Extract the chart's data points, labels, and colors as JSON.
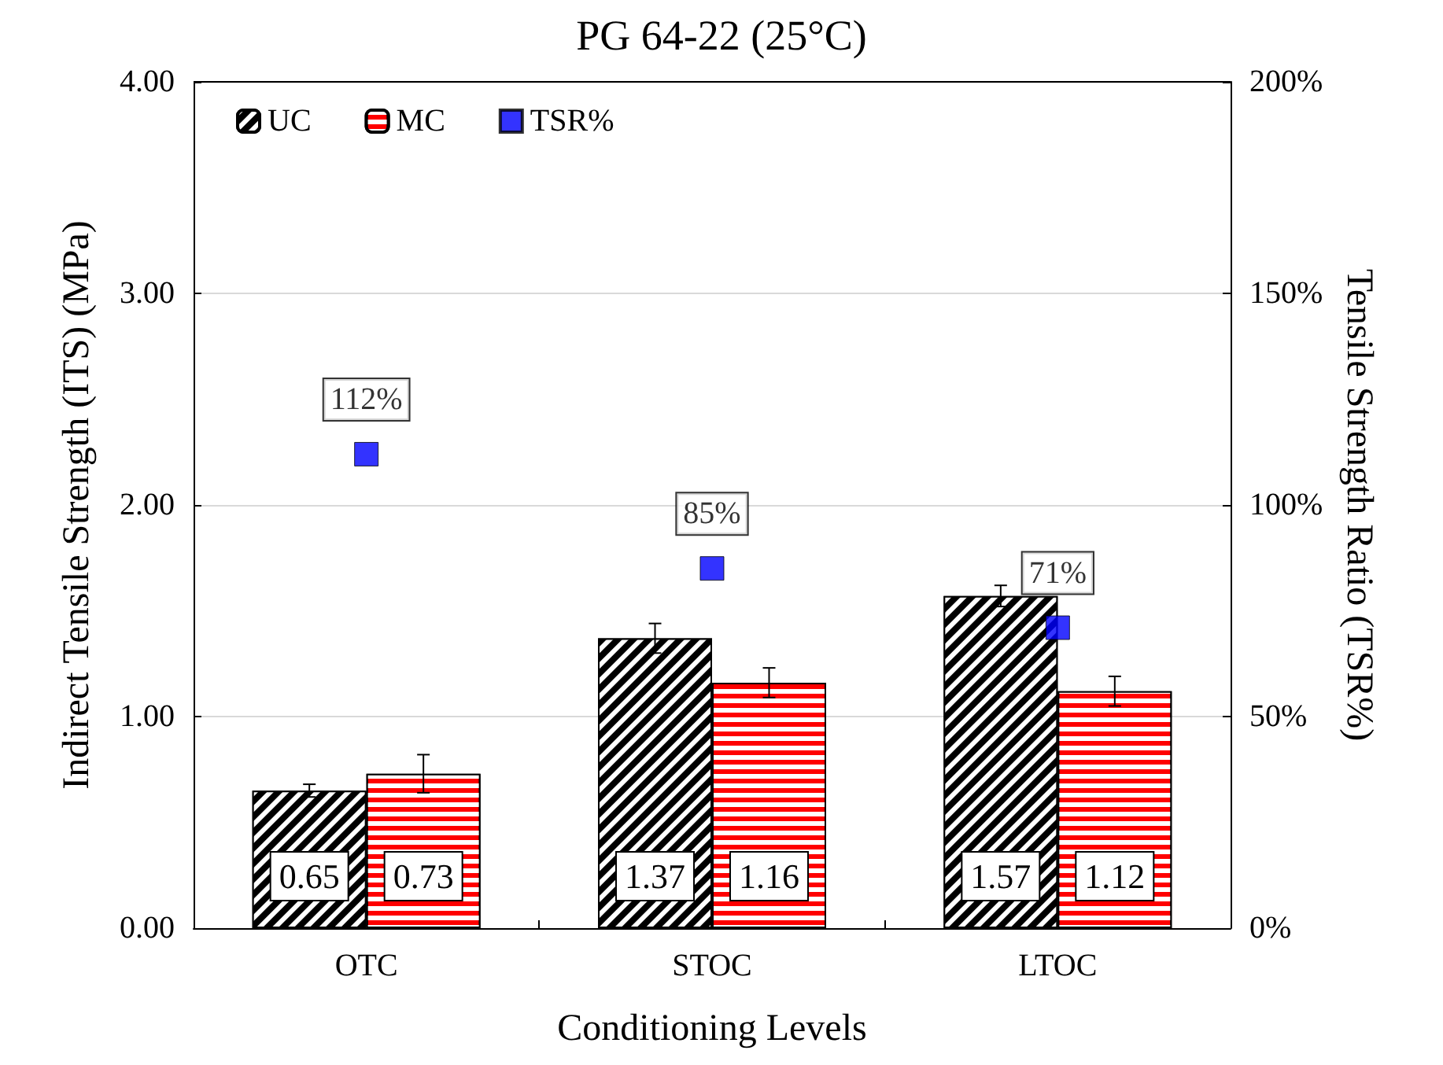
{
  "chart_data": {
    "type": "bar",
    "title": "PG 64-22 (25°C)",
    "xlabel": "Conditioning Levels",
    "ylabel": "Indirect Tensile Strength (ITS) (MPa)",
    "y2label": "Tensile Strength Ratio (TSR%)",
    "categories": [
      "OTC",
      "STOC",
      "LTOC"
    ],
    "series": [
      {
        "name": "UC",
        "color": "#000000",
        "values": [
          0.65,
          1.37,
          1.57
        ],
        "errors": [
          0.03,
          0.07,
          0.05
        ],
        "value_labels": [
          "0.65",
          "1.37",
          "1.57"
        ]
      },
      {
        "name": "MC",
        "color": "#ff0000",
        "values": [
          0.73,
          1.16,
          1.12
        ],
        "errors": [
          0.09,
          0.07,
          0.07
        ],
        "value_labels": [
          "0.73",
          "1.16",
          "1.12"
        ]
      },
      {
        "name": "TSR%",
        "type": "scatter",
        "axis": "y2",
        "color": "#0000ff",
        "values": [
          112,
          85,
          71
        ],
        "value_labels": [
          "112%",
          "85%",
          "71%"
        ]
      }
    ],
    "ylim": [
      0,
      4
    ],
    "yticks": [
      {
        "value": 0,
        "label": "0.00"
      },
      {
        "value": 1,
        "label": "1.00"
      },
      {
        "value": 2,
        "label": "2.00"
      },
      {
        "value": 3,
        "label": "3.00"
      },
      {
        "value": 4,
        "label": "4.00"
      }
    ],
    "y2lim": [
      0,
      200
    ],
    "y2ticks": [
      {
        "value": 0,
        "label": "0%"
      },
      {
        "value": 50,
        "label": "50%"
      },
      {
        "value": 100,
        "label": "100%"
      },
      {
        "value": 150,
        "label": "150%"
      },
      {
        "value": 200,
        "label": "200%"
      }
    ],
    "grid": "y",
    "legend": "top left",
    "marker": "square"
  }
}
